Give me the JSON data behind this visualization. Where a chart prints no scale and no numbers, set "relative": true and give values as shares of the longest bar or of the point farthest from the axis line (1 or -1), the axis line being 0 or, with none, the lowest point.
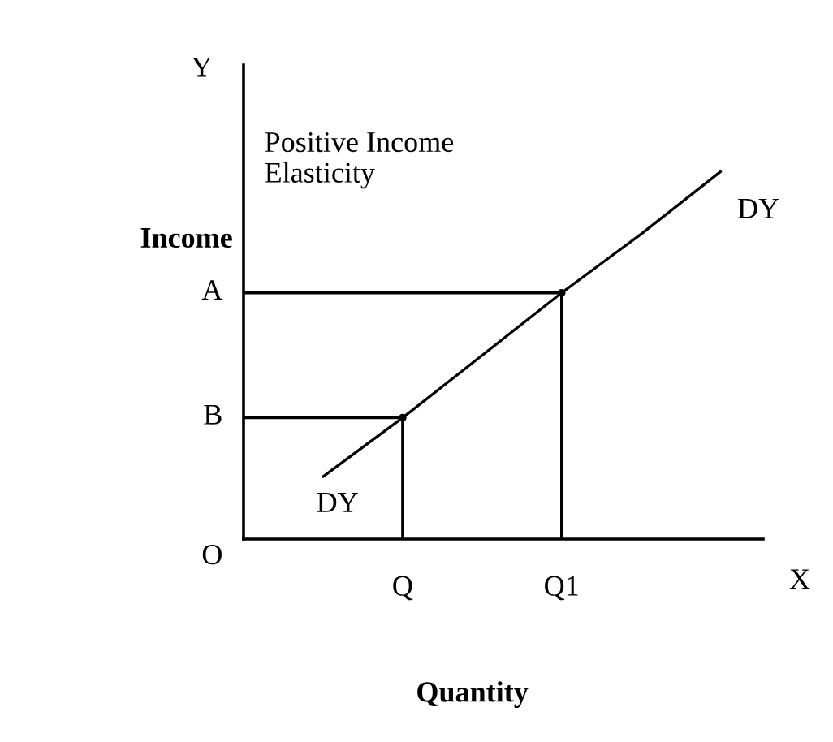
{
  "chart_data": {
    "type": "line",
    "relative": true,
    "xlabel": "Quantity",
    "ylabel": "Income",
    "categories": [
      null,
      null,
      "Q",
      null,
      "Q1",
      null,
      null
    ],
    "series": [
      {
        "color": "#000000",
        "values": [
          null,
          0.17,
          0.33,
          0.5,
          0.67,
          0.83,
          1
        ]
      },
      {
        "color": "#000000",
        "values": [
          0.33,
          0.33,
          0.33,
          null,
          null,
          null,
          null
        ]
      },
      {
        "color": "#000000",
        "values": [
          0.67,
          0.67,
          0.67,
          0.67,
          0.67,
          null,
          null
        ]
      },
      {
        "type": "lollipop",
        "marker": "circle",
        "color": "#000000",
        "values": [
          null,
          null,
          0.33,
          null,
          0.67,
          null,
          null
        ]
      }
    ],
    "annotations": [
      "Y",
      "X",
      "Positive Income Elasticity",
      "DY",
      "DY",
      "O",
      "B",
      "A"
    ]
  }
}
